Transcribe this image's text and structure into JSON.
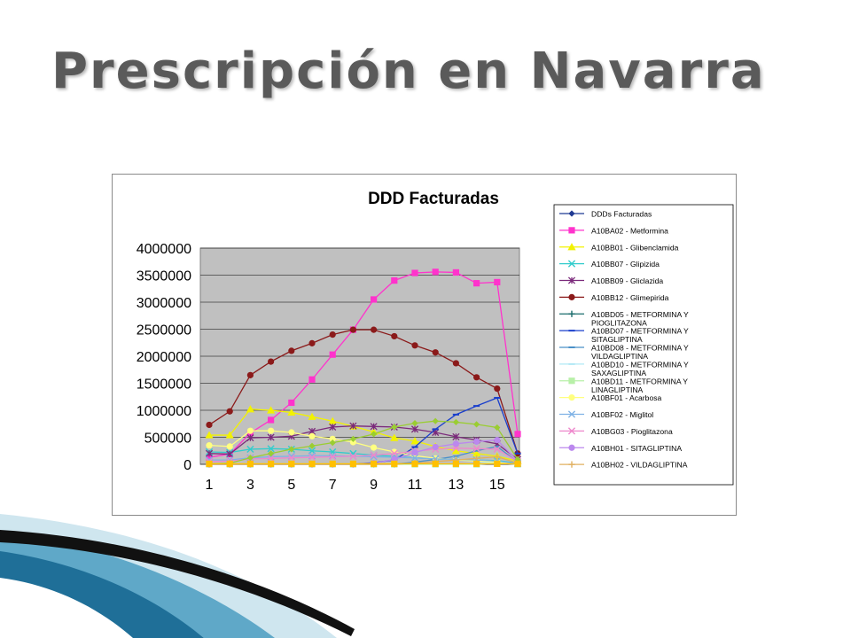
{
  "slide": {
    "title": "Prescripción en Navarra"
  },
  "chart_data": {
    "type": "line",
    "title": "DDD Facturadas",
    "xlabel": "",
    "ylabel": "",
    "x": [
      1,
      2,
      3,
      4,
      5,
      6,
      7,
      8,
      9,
      10,
      11,
      12,
      13,
      14,
      15,
      16
    ],
    "x_tick_labels": [
      "1",
      "3",
      "5",
      "7",
      "9",
      "11",
      "13",
      "15"
    ],
    "ylim": [
      0,
      4000000
    ],
    "y_tick_labels": [
      "0",
      "500000",
      "1000000",
      "1500000",
      "2000000",
      "2500000",
      "3000000",
      "3500000",
      "4000000"
    ],
    "grid": true,
    "plot_background": "#c0c0c0",
    "legend_position": "right",
    "series": [
      {
        "name": "DDDs Facturadas",
        "color": "#1f3a93",
        "marker": "diamond",
        "values": [
          null,
          null,
          null,
          null,
          null,
          null,
          null,
          null,
          null,
          null,
          null,
          null,
          null,
          null,
          null,
          null
        ]
      },
      {
        "name": "A10BA02 - Metformina",
        "color": "#ff33cc",
        "marker": "square",
        "values": [
          130000,
          190000,
          580000,
          820000,
          1140000,
          1570000,
          2030000,
          2490000,
          3050000,
          3400000,
          3540000,
          3560000,
          3550000,
          3350000,
          3370000,
          560000
        ]
      },
      {
        "name": "A10BB01 - Glibenclamida",
        "color": "#f2f200",
        "marker": "triangle",
        "values": [
          540000,
          540000,
          1020000,
          1000000,
          960000,
          880000,
          800000,
          700000,
          600000,
          490000,
          430000,
          330000,
          250000,
          200000,
          150000,
          60000
        ]
      },
      {
        "name": "A10BB07 - Glipizida",
        "color": "#33cccc",
        "marker": "x",
        "values": [
          230000,
          220000,
          280000,
          290000,
          280000,
          250000,
          230000,
          200000,
          170000,
          150000,
          120000,
          100000,
          90000,
          80000,
          70000,
          20000
        ]
      },
      {
        "name": "A10BB09 - Gliclazida",
        "color": "#7b2a7b",
        "marker": "star",
        "values": [
          200000,
          190000,
          490000,
          500000,
          520000,
          610000,
          690000,
          710000,
          700000,
          690000,
          650000,
          590000,
          510000,
          450000,
          380000,
          90000
        ]
      },
      {
        "name": "A10BB12 - Glimepirida",
        "color": "#8b1a1a",
        "marker": "circle",
        "values": [
          730000,
          980000,
          1650000,
          1900000,
          2100000,
          2240000,
          2400000,
          2490000,
          2490000,
          2370000,
          2200000,
          2070000,
          1870000,
          1610000,
          1400000,
          200000
        ]
      },
      {
        "name": "A10BD05 - METFORMINA Y PIOGLITAZONA",
        "color": "#1a6b6b",
        "marker": "plus",
        "values": [
          null,
          null,
          null,
          null,
          null,
          null,
          null,
          null,
          null,
          null,
          null,
          null,
          null,
          null,
          null,
          null
        ]
      },
      {
        "name": "A10BD07 - METFORMINA Y SITAGLIPTINA",
        "color": "#1a3fcc",
        "marker": "dash",
        "values": [
          0,
          0,
          0,
          0,
          0,
          0,
          0,
          0,
          30000,
          80000,
          320000,
          650000,
          920000,
          1080000,
          1230000,
          200000
        ]
      },
      {
        "name": "A10BD08 - METFORMINA Y VILDAGLIPTINA",
        "color": "#4a90c8",
        "marker": "dash",
        "values": [
          0,
          0,
          0,
          0,
          0,
          0,
          0,
          0,
          0,
          0,
          40000,
          90000,
          150000,
          250000,
          330000,
          40000
        ]
      },
      {
        "name": "A10BD10 - METFORMINA Y SAXAGLIPTINA",
        "color": "#b0e8f5",
        "marker": "dash",
        "values": [
          0,
          0,
          0,
          0,
          0,
          0,
          0,
          0,
          0,
          0,
          0,
          0,
          0,
          20000,
          40000,
          10000
        ]
      },
      {
        "name": "A10BD11 - METFORMINA Y LINAGLIPTINA",
        "color": "#b8f0a8",
        "marker": "square",
        "values": [
          0,
          0,
          0,
          0,
          0,
          0,
          0,
          0,
          0,
          0,
          0,
          0,
          0,
          0,
          20000,
          0
        ]
      },
      {
        "name": "A10BF01 - Acarbosa",
        "color": "#ffff80",
        "marker": "circle",
        "values": [
          350000,
          330000,
          620000,
          620000,
          590000,
          520000,
          470000,
          410000,
          310000,
          230000,
          160000,
          110000,
          80000,
          60000,
          40000,
          10000
        ]
      },
      {
        "name": "A10BF02 - Miglitol",
        "color": "#7fb2e5",
        "marker": "x",
        "values": [
          80000,
          80000,
          120000,
          140000,
          150000,
          160000,
          160000,
          150000,
          140000,
          130000,
          120000,
          100000,
          90000,
          80000,
          60000,
          10000
        ]
      },
      {
        "name": "A10BG03 - Pioglitazona",
        "color": "#ee88cc",
        "marker": "x",
        "values": [
          50000,
          60000,
          100000,
          110000,
          120000,
          130000,
          140000,
          150000,
          170000,
          200000,
          240000,
          280000,
          300000,
          290000,
          280000,
          50000
        ]
      },
      {
        "name": "A10BH01 - SITAGLIPTINA",
        "color": "#bb88ee",
        "marker": "circle",
        "values": [
          0,
          0,
          0,
          0,
          0,
          0,
          0,
          0,
          20000,
          90000,
          220000,
          320000,
          380000,
          420000,
          450000,
          60000
        ]
      },
      {
        "name": "A10BH02 - VILDAGLIPTINA",
        "color": "#e0b060",
        "marker": "plus",
        "values": [
          0,
          0,
          0,
          0,
          0,
          0,
          0,
          0,
          0,
          0,
          20000,
          50000,
          80000,
          110000,
          140000,
          20000
        ]
      },
      {
        "name": "",
        "color": "#9acd32",
        "marker": "diamond",
        "values": [
          10000,
          20000,
          120000,
          200000,
          280000,
          340000,
          400000,
          470000,
          560000,
          690000,
          760000,
          800000,
          780000,
          740000,
          680000,
          90000
        ]
      },
      {
        "name": "",
        "color": "#ffc000",
        "marker": "square",
        "values": [
          10000,
          10000,
          10000,
          10000,
          10000,
          10000,
          10000,
          10000,
          10000,
          10000,
          10000,
          10000,
          10000,
          10000,
          10000,
          10000
        ]
      }
    ]
  }
}
